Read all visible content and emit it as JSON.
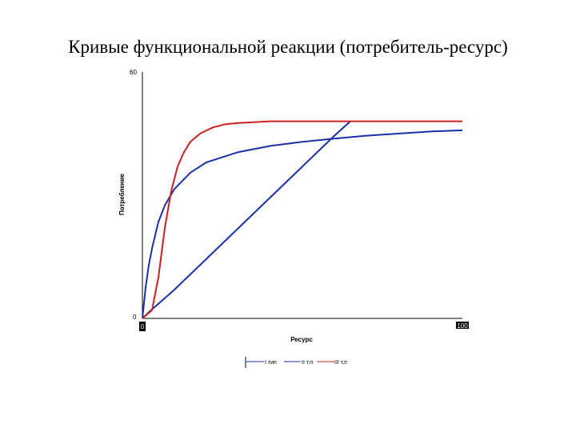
{
  "title": "Кривые функциональной реакции (потребитель-ресурс)",
  "chart_data": {
    "type": "line",
    "title": "",
    "xlabel": "Ресурс",
    "ylabel": "Потребление",
    "xlim": [
      0,
      100
    ],
    "ylim": [
      0,
      60
    ],
    "x_ticks": [
      "0",
      "100"
    ],
    "y_ticks": [
      "0",
      "60"
    ],
    "grid": false,
    "legend_position": "bottom",
    "series": [
      {
        "name": "I тип",
        "color": "#1a2fa8",
        "x": [
          0,
          2,
          10,
          20,
          30,
          40,
          50,
          60,
          65
        ],
        "y": [
          0,
          1.5,
          7,
          14.5,
          22,
          29.5,
          37,
          44.5,
          48
        ]
      },
      {
        "name": "II т.п",
        "color": "#1a2fa8",
        "x": [
          0,
          1,
          2,
          3,
          5,
          7,
          10,
          15,
          20,
          30,
          40,
          50,
          60,
          70,
          80,
          90,
          100
        ],
        "y": [
          0,
          7.5,
          13,
          17,
          23.5,
          27.5,
          31.5,
          35.5,
          38,
          40.5,
          42,
          43,
          43.8,
          44.5,
          45,
          45.5,
          45.8
        ]
      },
      {
        "name": "III т.п",
        "color": "#cc2020",
        "x": [
          0,
          3,
          5,
          7,
          9,
          11,
          13,
          15,
          18,
          22,
          26,
          30,
          40,
          60,
          80,
          100
        ],
        "y": [
          0,
          2,
          10,
          22,
          31,
          37,
          40.5,
          43,
          45,
          46.5,
          47.3,
          47.6,
          48,
          48,
          48,
          48
        ]
      }
    ]
  }
}
